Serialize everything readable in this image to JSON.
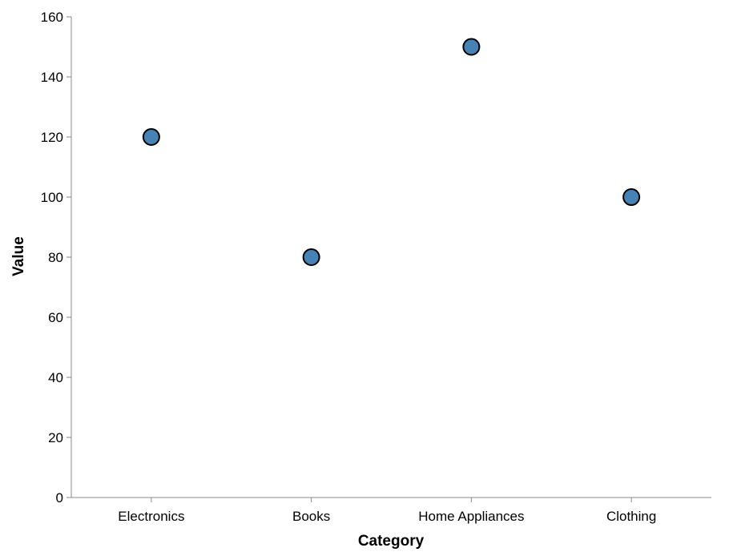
{
  "chart_data": {
    "type": "scatter",
    "title": "",
    "xlabel": "Category",
    "ylabel": "Value",
    "categories": [
      "Electronics",
      "Books",
      "Home Appliances",
      "Clothing"
    ],
    "values": [
      120,
      80,
      150,
      100
    ],
    "ylim": [
      0,
      160
    ],
    "yticks": [
      0,
      20,
      40,
      60,
      80,
      100,
      120,
      140,
      160
    ],
    "grid": false,
    "point_color": "#4682b4"
  }
}
